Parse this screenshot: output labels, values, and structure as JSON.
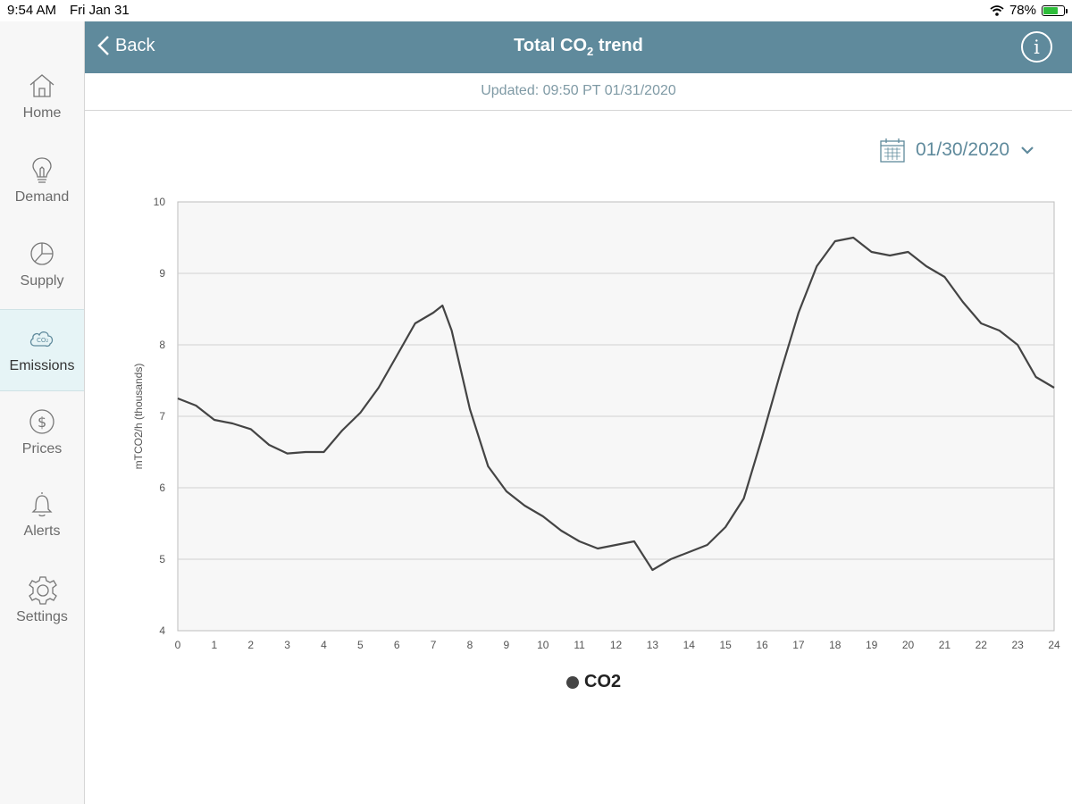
{
  "status_bar": {
    "time": "9:54 AM",
    "date": "Fri Jan 31",
    "battery_text": "78%",
    "battery_level": 0.78
  },
  "sidebar": {
    "items": [
      {
        "label": "Home",
        "icon": "home-icon",
        "active": false
      },
      {
        "label": "Demand",
        "icon": "lightbulb-icon",
        "active": false
      },
      {
        "label": "Supply",
        "icon": "pie-icon",
        "active": false
      },
      {
        "label": "Emissions",
        "icon": "co2-cloud-icon",
        "active": true
      },
      {
        "label": "Prices",
        "icon": "dollar-icon",
        "active": false
      },
      {
        "label": "Alerts",
        "icon": "bell-icon",
        "active": false
      },
      {
        "label": "Settings",
        "icon": "gear-icon",
        "active": false
      }
    ]
  },
  "header": {
    "back_label": "Back",
    "title_main": "Total CO",
    "title_sub": "2",
    "title_tail": " trend",
    "header_color": "#5f8a9c"
  },
  "updated_text": "Updated: 09:50 PT 01/31/2020",
  "date_picker": {
    "value": "01/30/2020"
  },
  "chart_data": {
    "type": "line",
    "ylabel": "mTCO2/h (thousands)",
    "ylim": [
      4,
      10
    ],
    "xlim": [
      0,
      24
    ],
    "x_ticks": [
      0,
      1,
      2,
      3,
      4,
      5,
      6,
      7,
      8,
      9,
      10,
      11,
      12,
      13,
      14,
      15,
      16,
      17,
      18,
      19,
      20,
      21,
      22,
      23,
      24
    ],
    "y_ticks": [
      4,
      5,
      6,
      7,
      8,
      9,
      10
    ],
    "grid": true,
    "legend_position": "bottom-center",
    "series": [
      {
        "name": "CO2",
        "color": "#444444",
        "x": [
          0,
          0.5,
          1,
          1.5,
          2,
          2.5,
          3,
          3.5,
          4,
          4.5,
          5,
          5.5,
          6,
          6.5,
          7,
          7.25,
          7.5,
          8,
          8.5,
          9,
          9.5,
          10,
          10.5,
          11,
          11.5,
          12,
          12.5,
          13,
          13.5,
          14,
          14.5,
          15,
          15.5,
          16,
          16.5,
          17,
          17.5,
          18,
          18.5,
          19,
          19.5,
          20,
          20.5,
          21,
          21.5,
          22,
          22.5,
          23,
          23.5,
          24
        ],
        "y": [
          7.25,
          7.15,
          6.95,
          6.9,
          6.82,
          6.6,
          6.48,
          6.5,
          6.5,
          6.8,
          7.05,
          7.4,
          7.85,
          8.3,
          8.45,
          8.55,
          8.2,
          7.1,
          6.3,
          5.95,
          5.75,
          5.6,
          5.4,
          5.25,
          5.15,
          5.2,
          5.25,
          4.85,
          5.0,
          5.1,
          5.2,
          5.45,
          5.85,
          6.7,
          7.6,
          8.45,
          9.1,
          9.45,
          9.5,
          9.3,
          9.25,
          9.3,
          9.1,
          8.95,
          8.6,
          8.3,
          8.2,
          8.0,
          7.55,
          7.4
        ]
      }
    ]
  }
}
